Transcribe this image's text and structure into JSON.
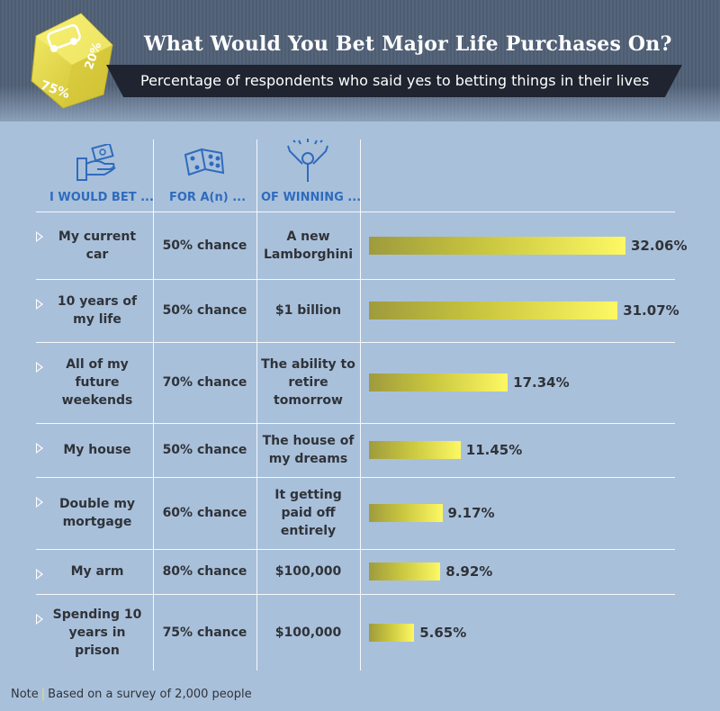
{
  "header": {
    "title": "What Would You Bet Major Life Purchases On?",
    "subtitle": "Percentage of respondents who said yes to betting things in their lives",
    "dice_face_1": "20%",
    "dice_face_2": "75%"
  },
  "columns": {
    "bet_header": "I WOULD BET ...",
    "chance_header": "FOR A(n) ...",
    "winning_header": "OF WINNING ..."
  },
  "colors": {
    "bar_start": "#9e9b3d",
    "bar_end": "#fdf863",
    "header_text": "#2f6bbd"
  },
  "chart_data": {
    "type": "bar",
    "orientation": "horizontal",
    "title": "What Would You Bet Major Life Purchases On?",
    "subtitle": "Percentage of respondents who said yes to betting things in their lives",
    "xlim": [
      0,
      35
    ],
    "rows": [
      {
        "bet": "My current car",
        "chance": "50% chance",
        "winning": "A new Lamborghini",
        "value": 32.06,
        "label": "32.06%"
      },
      {
        "bet": "10 years of my life",
        "chance": "50% chance",
        "winning": "$1 billion",
        "value": 31.07,
        "label": "31.07%"
      },
      {
        "bet": "All of my future weekends",
        "chance": "70% chance",
        "winning": "The ability to retire tomorrow",
        "value": 17.34,
        "label": "17.34%"
      },
      {
        "bet": "My house",
        "chance": "50% chance",
        "winning": "The house of my dreams",
        "value": 11.45,
        "label": "11.45%"
      },
      {
        "bet": "Double my mortgage",
        "chance": "60% chance",
        "winning": "It getting paid off entirely",
        "value": 9.17,
        "label": "9.17%"
      },
      {
        "bet": "My arm",
        "chance": "80% chance",
        "winning": "$100,000",
        "value": 8.92,
        "label": "8.92%"
      },
      {
        "bet": "Spending 10 years in prison",
        "chance": "75% chance",
        "winning": "$100,000",
        "value": 5.65,
        "label": "5.65%"
      }
    ]
  },
  "footer": {
    "note_label": "Note",
    "note_text": "Based on a survey of 2,000 people"
  }
}
